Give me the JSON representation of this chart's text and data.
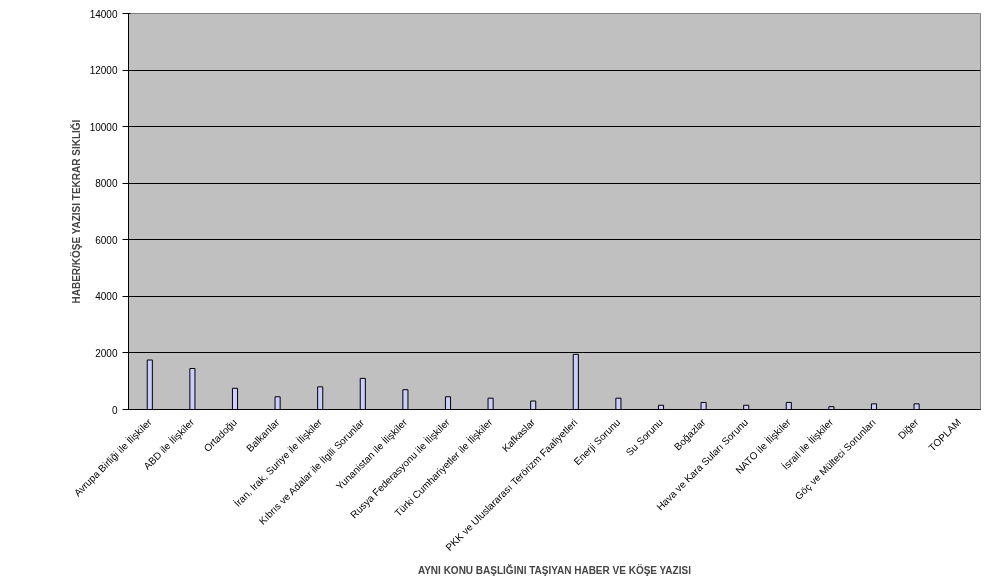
{
  "chart_data": {
    "type": "bar",
    "xlabel": "AYNI KONU BAŞLIĞINI TAŞIYAN HABER VE KÖŞE YAZISI",
    "ylabel": "HABER/KÖŞE YAZISI TEKRAR SIKLIĞI",
    "categories": [
      "Avrupa Birliği ile İlişkiler",
      "ABD ile İlişkiler",
      "Ortadoğu",
      "Balkanlar",
      "İran, Irak, Suriye ile İlişkiler",
      "Kıbrıs ve Adalar ile İlgili Sorunlar",
      "Yunanistan ile İlişkiler",
      "Rusya Federasyonu ile İlişkiler",
      "Türki Cumhariyetler ile İlişkiler",
      "Kafkaslar",
      "PKK ve Uluslararası Terörizm Faaliyetleri",
      "Enerji Sorunu",
      "Su Sorunu",
      "Boğazlar",
      "Hava ve Kara Suları Sorunu",
      "NATO ile İlişkiler",
      "İsrail ile İlişkiler",
      "Göç ve Mülteci Sorunları",
      "Diğer",
      "TOPLAM"
    ],
    "values": [
      1750,
      1450,
      750,
      450,
      800,
      1100,
      700,
      450,
      400,
      300,
      1950,
      400,
      150,
      250,
      150,
      250,
      100,
      200,
      200,
      null
    ],
    "color": "#ccccff",
    "ylim": [
      0,
      14000
    ],
    "yticks": [
      0,
      2000,
      4000,
      6000,
      8000,
      10000,
      12000,
      14000
    ],
    "grid": "y"
  }
}
